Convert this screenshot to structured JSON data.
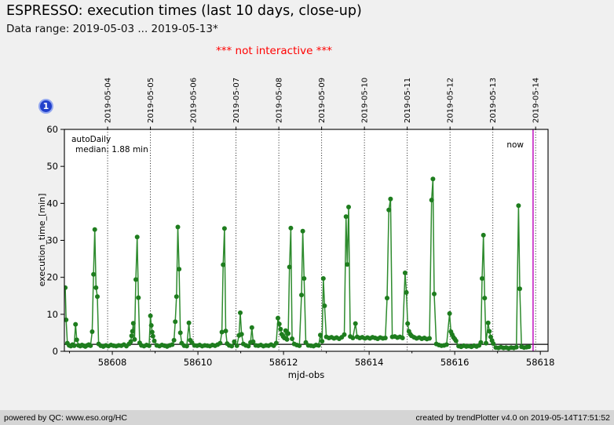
{
  "header": {
    "title": "ESPRESSO: execution times (last 10 days, close-up)",
    "subtitle": "Data range: 2019-05-03 ... 2019-05-13*"
  },
  "notice": "*** not interactive ***",
  "badge": "1",
  "footer": {
    "left": "powered by QC: www.eso.org/HC",
    "right": "created by trendPlotter v4.0 on 2019-05-14T17:51:52"
  },
  "colors": {
    "page_bg": "#f0f0f0",
    "plot_bg": "#ffffff",
    "series_marker": "#1e7d1e",
    "series_line": "#2e8b2e",
    "median_line": "#000000",
    "now_line": "#bb00bb",
    "notice_text": "#ff0000",
    "badge_bg": "#2140cc"
  },
  "chart_data": {
    "type": "line",
    "title": "",
    "xlabel": "mjd-obs",
    "ylabel": "execution_time_[min]",
    "xlim": [
      58606.88,
      58618.18
    ],
    "ylim": [
      0,
      60
    ],
    "x_major_ticks": [
      58608,
      58610,
      58612,
      58614,
      58616,
      58618
    ],
    "x_minor_ticks": [
      58607,
      58609,
      58611,
      58613,
      58615,
      58617
    ],
    "y_ticks": [
      0,
      10,
      20,
      30,
      40,
      50,
      60
    ],
    "grid": "vertical dotted lines at night boundaries",
    "legend_position": "none",
    "annotation": {
      "line1": "autoDaily",
      "line2": "median: 1.88 min"
    },
    "median_value": 1.88,
    "now": {
      "label": "now",
      "mjd": 58617.83
    },
    "night_boundaries": [
      {
        "date": "2019-05-04",
        "mjd": 58607.89
      },
      {
        "date": "2019-05-05",
        "mjd": 58608.89
      },
      {
        "date": "2019-05-06",
        "mjd": 58609.89
      },
      {
        "date": "2019-05-07",
        "mjd": 58610.89
      },
      {
        "date": "2019-05-08",
        "mjd": 58611.89
      },
      {
        "date": "2019-05-09",
        "mjd": 58612.89
      },
      {
        "date": "2019-05-10",
        "mjd": 58613.89
      },
      {
        "date": "2019-05-11",
        "mjd": 58614.89
      },
      {
        "date": "2019-05-12",
        "mjd": 58615.89
      },
      {
        "date": "2019-05-13",
        "mjd": 58616.89
      },
      {
        "date": "2019-05-14",
        "mjd": 58617.89
      }
    ],
    "series": [
      {
        "name": "autoDaily",
        "points": [
          [
            58606.9,
            17.2
          ],
          [
            58606.92,
            8.5
          ],
          [
            58606.95,
            2.2
          ],
          [
            58606.99,
            1.6
          ],
          [
            58607.03,
            1.4
          ],
          [
            58607.07,
            1.8
          ],
          [
            58607.11,
            1.5
          ],
          [
            58607.14,
            7.3
          ],
          [
            58607.17,
            3.1
          ],
          [
            58607.21,
            1.6
          ],
          [
            58607.25,
            1.4
          ],
          [
            58607.29,
            1.7
          ],
          [
            58607.33,
            1.5
          ],
          [
            58607.37,
            1.3
          ],
          [
            58607.41,
            1.6
          ],
          [
            58607.45,
            1.8
          ],
          [
            58607.49,
            1.5
          ],
          [
            58607.53,
            5.3
          ],
          [
            58607.56,
            20.8
          ],
          [
            58607.59,
            32.9
          ],
          [
            58607.62,
            17.2
          ],
          [
            58607.65,
            14.8
          ],
          [
            58607.68,
            2.0
          ],
          [
            58607.73,
            1.5
          ],
          [
            58607.79,
            1.3
          ],
          [
            58607.85,
            1.6
          ],
          [
            58607.91,
            1.4
          ],
          [
            58607.97,
            1.7
          ],
          [
            58608.03,
            1.5
          ],
          [
            58608.09,
            1.4
          ],
          [
            58608.15,
            1.6
          ],
          [
            58608.21,
            1.5
          ],
          [
            58608.27,
            1.8
          ],
          [
            58608.33,
            1.4
          ],
          [
            58608.39,
            2.0
          ],
          [
            58608.43,
            2.6
          ],
          [
            58608.45,
            4.2
          ],
          [
            58608.47,
            5.4
          ],
          [
            58608.49,
            7.6
          ],
          [
            58608.52,
            3.2
          ],
          [
            58608.55,
            19.4
          ],
          [
            58608.58,
            30.9
          ],
          [
            58608.61,
            14.5
          ],
          [
            58608.64,
            2.3
          ],
          [
            58608.68,
            1.6
          ],
          [
            58608.74,
            1.4
          ],
          [
            58608.8,
            1.7
          ],
          [
            58608.86,
            1.5
          ],
          [
            58608.89,
            9.6
          ],
          [
            58608.91,
            7.0
          ],
          [
            58608.93,
            5.2
          ],
          [
            58608.95,
            4.1
          ],
          [
            58608.98,
            2.8
          ],
          [
            58609.04,
            1.6
          ],
          [
            58609.1,
            1.4
          ],
          [
            58609.16,
            1.7
          ],
          [
            58609.22,
            1.5
          ],
          [
            58609.28,
            1.3
          ],
          [
            58609.34,
            1.6
          ],
          [
            58609.4,
            1.8
          ],
          [
            58609.44,
            3.0
          ],
          [
            58609.47,
            8.0
          ],
          [
            58609.5,
            14.8
          ],
          [
            58609.53,
            33.6
          ],
          [
            58609.56,
            22.2
          ],
          [
            58609.59,
            5.0
          ],
          [
            58609.62,
            2.2
          ],
          [
            58609.68,
            1.5
          ],
          [
            58609.74,
            1.4
          ],
          [
            58609.79,
            7.7
          ],
          [
            58609.82,
            3.0
          ],
          [
            58609.86,
            2.4
          ],
          [
            58609.92,
            1.6
          ],
          [
            58609.98,
            1.5
          ],
          [
            58610.04,
            1.7
          ],
          [
            58610.1,
            1.4
          ],
          [
            58610.16,
            1.6
          ],
          [
            58610.22,
            1.5
          ],
          [
            58610.28,
            1.4
          ],
          [
            58610.34,
            1.7
          ],
          [
            58610.4,
            1.5
          ],
          [
            58610.46,
            1.8
          ],
          [
            58610.52,
            2.2
          ],
          [
            58610.56,
            5.2
          ],
          [
            58610.59,
            23.4
          ],
          [
            58610.62,
            33.2
          ],
          [
            58610.65,
            5.5
          ],
          [
            58610.68,
            2.1
          ],
          [
            58610.73,
            1.6
          ],
          [
            58610.79,
            1.4
          ],
          [
            58610.85,
            2.6
          ],
          [
            58610.91,
            1.5
          ],
          [
            58610.96,
            4.3
          ],
          [
            58610.99,
            10.4
          ],
          [
            58611.02,
            4.6
          ],
          [
            58611.06,
            2.0
          ],
          [
            58611.12,
            1.6
          ],
          [
            58611.18,
            1.4
          ],
          [
            58611.23,
            2.4
          ],
          [
            58611.26,
            6.4
          ],
          [
            58611.29,
            2.6
          ],
          [
            58611.35,
            1.6
          ],
          [
            58611.41,
            1.5
          ],
          [
            58611.47,
            1.7
          ],
          [
            58611.53,
            1.4
          ],
          [
            58611.59,
            1.6
          ],
          [
            58611.65,
            1.5
          ],
          [
            58611.71,
            1.8
          ],
          [
            58611.77,
            1.5
          ],
          [
            58611.83,
            2.2
          ],
          [
            58611.87,
            9.0
          ],
          [
            58611.9,
            7.4
          ],
          [
            58611.93,
            6.0
          ],
          [
            58611.96,
            4.6
          ],
          [
            58611.99,
            4.0
          ],
          [
            58612.02,
            3.6
          ],
          [
            58612.05,
            5.6
          ],
          [
            58612.08,
            3.2
          ],
          [
            58612.11,
            4.8
          ],
          [
            58612.14,
            22.8
          ],
          [
            58612.17,
            33.3
          ],
          [
            58612.2,
            3.4
          ],
          [
            58612.25,
            2.0
          ],
          [
            58612.31,
            1.7
          ],
          [
            58612.37,
            1.5
          ],
          [
            58612.42,
            15.2
          ],
          [
            58612.45,
            32.5
          ],
          [
            58612.48,
            19.7
          ],
          [
            58612.52,
            2.4
          ],
          [
            58612.58,
            1.6
          ],
          [
            58612.64,
            1.5
          ],
          [
            58612.7,
            1.4
          ],
          [
            58612.76,
            1.7
          ],
          [
            58612.82,
            1.6
          ],
          [
            58612.86,
            4.4
          ],
          [
            58612.9,
            2.7
          ],
          [
            58612.93,
            19.7
          ],
          [
            58612.96,
            12.3
          ],
          [
            58613.0,
            3.9
          ],
          [
            58613.06,
            3.6
          ],
          [
            58613.12,
            3.8
          ],
          [
            58613.18,
            3.5
          ],
          [
            58613.24,
            3.7
          ],
          [
            58613.3,
            3.4
          ],
          [
            58613.36,
            3.8
          ],
          [
            58613.42,
            4.5
          ],
          [
            58613.46,
            36.4
          ],
          [
            58613.49,
            23.5
          ],
          [
            58613.52,
            39.0
          ],
          [
            58613.56,
            4.0
          ],
          [
            58613.62,
            3.6
          ],
          [
            58613.68,
            7.5
          ],
          [
            58613.72,
            3.9
          ],
          [
            58613.78,
            3.6
          ],
          [
            58613.84,
            3.8
          ],
          [
            58613.9,
            3.5
          ],
          [
            58613.96,
            3.7
          ],
          [
            58614.02,
            3.5
          ],
          [
            58614.08,
            3.8
          ],
          [
            58614.14,
            3.6
          ],
          [
            58614.2,
            3.4
          ],
          [
            58614.26,
            3.7
          ],
          [
            58614.32,
            3.5
          ],
          [
            58614.38,
            3.6
          ],
          [
            58614.42,
            14.4
          ],
          [
            58614.46,
            38.2
          ],
          [
            58614.5,
            41.2
          ],
          [
            58614.54,
            3.9
          ],
          [
            58614.6,
            4.0
          ],
          [
            58614.66,
            3.7
          ],
          [
            58614.72,
            3.9
          ],
          [
            58614.78,
            3.6
          ],
          [
            58614.84,
            21.2
          ],
          [
            58614.87,
            15.9
          ],
          [
            58614.9,
            7.5
          ],
          [
            58614.93,
            5.4
          ],
          [
            58614.96,
            4.6
          ],
          [
            58614.99,
            4.2
          ],
          [
            58615.05,
            3.8
          ],
          [
            58615.11,
            3.5
          ],
          [
            58615.17,
            3.7
          ],
          [
            58615.23,
            3.4
          ],
          [
            58615.29,
            3.6
          ],
          [
            58615.35,
            3.3
          ],
          [
            58615.41,
            3.5
          ],
          [
            58615.46,
            40.9
          ],
          [
            58615.49,
            46.6
          ],
          [
            58615.52,
            15.5
          ],
          [
            58615.57,
            2.0
          ],
          [
            58615.63,
            1.7
          ],
          [
            58615.69,
            1.5
          ],
          [
            58615.75,
            1.6
          ],
          [
            58615.81,
            1.8
          ],
          [
            58615.88,
            10.2
          ],
          [
            58615.91,
            5.3
          ],
          [
            58615.94,
            4.5
          ],
          [
            58615.97,
            3.8
          ],
          [
            58616.0,
            3.3
          ],
          [
            58616.03,
            2.8
          ],
          [
            58616.09,
            1.4
          ],
          [
            58616.15,
            1.2
          ],
          [
            58616.21,
            1.5
          ],
          [
            58616.27,
            1.3
          ],
          [
            58616.33,
            1.4
          ],
          [
            58616.39,
            1.2
          ],
          [
            58616.45,
            1.5
          ],
          [
            58616.51,
            1.3
          ],
          [
            58616.57,
            1.6
          ],
          [
            58616.61,
            2.4
          ],
          [
            58616.64,
            19.7
          ],
          [
            58616.67,
            31.4
          ],
          [
            58616.7,
            14.4
          ],
          [
            58616.73,
            2.2
          ],
          [
            58616.78,
            7.7
          ],
          [
            58616.81,
            5.4
          ],
          [
            58616.84,
            3.9
          ],
          [
            58616.87,
            2.9
          ],
          [
            58616.9,
            2.1
          ],
          [
            58616.96,
            1.0
          ],
          [
            58617.02,
            0.9
          ],
          [
            58617.08,
            1.1
          ],
          [
            58617.14,
            0.9
          ],
          [
            58617.2,
            1.0
          ],
          [
            58617.26,
            0.8
          ],
          [
            58617.32,
            1.0
          ],
          [
            58617.38,
            0.9
          ],
          [
            58617.44,
            1.1
          ],
          [
            58617.49,
            39.4
          ],
          [
            58617.52,
            16.9
          ],
          [
            58617.56,
            1.2
          ],
          [
            58617.62,
            1.0
          ],
          [
            58617.68,
            1.1
          ],
          [
            58617.73,
            1.2
          ]
        ]
      }
    ]
  }
}
